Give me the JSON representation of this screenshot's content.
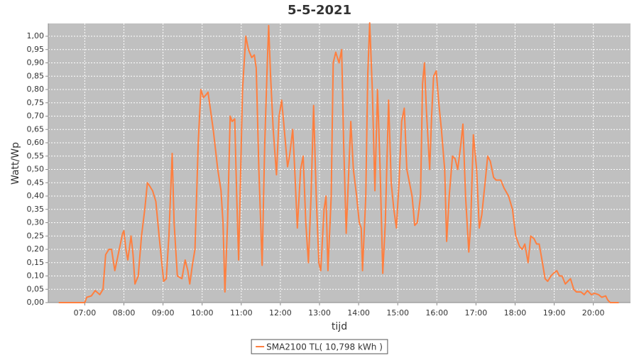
{
  "chart_data": {
    "type": "line",
    "title": "5-5-2021",
    "x_label": "tijd",
    "y_label": "Watt/Wp",
    "plot_background": "#c0c0c0",
    "grid": true,
    "legend": "bottom",
    "xlim": [
      "06:04",
      "20:57"
    ],
    "xticks": [
      "07:00",
      "08:00",
      "09:00",
      "10:00",
      "11:00",
      "12:00",
      "13:00",
      "14:00",
      "15:00",
      "16:00",
      "17:00",
      "18:00",
      "19:00",
      "20:00"
    ],
    "ylim": [
      0,
      1.048
    ],
    "yticks": [
      {
        "value": 0,
        "label": "0,00"
      },
      {
        "value": 0.05,
        "label": "0,05"
      },
      {
        "value": 0.1,
        "label": "0,10"
      },
      {
        "value": 0.15,
        "label": "0,15"
      },
      {
        "value": 0.2,
        "label": "0,20"
      },
      {
        "value": 0.25,
        "label": "0,25"
      },
      {
        "value": 0.3,
        "label": "0,30"
      },
      {
        "value": 0.35,
        "label": "0,35"
      },
      {
        "value": 0.4,
        "label": "0,40"
      },
      {
        "value": 0.45,
        "label": "0,45"
      },
      {
        "value": 0.5,
        "label": "0,50"
      },
      {
        "value": 0.55,
        "label": "0,55"
      },
      {
        "value": 0.6,
        "label": "0,60"
      },
      {
        "value": 0.65,
        "label": "0,65"
      },
      {
        "value": 0.7,
        "label": "0,70"
      },
      {
        "value": 0.75,
        "label": "0,75"
      },
      {
        "value": 0.8,
        "label": "0,80"
      },
      {
        "value": 0.85,
        "label": "0,85"
      },
      {
        "value": 0.9,
        "label": "0,90"
      },
      {
        "value": 0.95,
        "label": "0,95"
      },
      {
        "value": 1,
        "label": "1,00"
      }
    ],
    "series": [
      {
        "name": "SMA2100 TL( 10,798 kWh )",
        "color": "#ff7f3f",
        "x": [
          "06:20",
          "07:00",
          "07:03",
          "07:10",
          "07:16",
          "07:23",
          "07:28",
          "07:32",
          "07:37",
          "07:41",
          "07:46",
          "07:52",
          "07:58",
          "08:00",
          "08:03",
          "08:06",
          "08:11",
          "08:14",
          "08:17",
          "08:22",
          "08:27",
          "08:32",
          "08:36",
          "08:39",
          "08:44",
          "08:49",
          "08:54",
          "09:01",
          "09:05",
          "09:09",
          "09:14",
          "09:17",
          "09:22",
          "09:29",
          "09:34",
          "09:38",
          "09:41",
          "09:45",
          "09:49",
          "09:54",
          "09:58",
          "10:02",
          "10:06",
          "10:09",
          "10:17",
          "10:24",
          "10:29",
          "10:32",
          "10:35",
          "10:39",
          "10:43",
          "10:46",
          "10:50",
          "10:53",
          "10:56",
          "11:02",
          "11:07",
          "11:11",
          "11:16",
          "11:20",
          "11:23",
          "11:27",
          "11:32",
          "11:36",
          "11:40",
          "11:42",
          "11:45",
          "11:49",
          "11:54",
          "11:58",
          "12:02",
          "12:06",
          "12:11",
          "12:14",
          "12:19",
          "12:22",
          "12:26",
          "12:31",
          "12:35",
          "12:39",
          "12:43",
          "12:47",
          "12:51",
          "12:55",
          "12:59",
          "13:02",
          "13:07",
          "13:10",
          "13:13",
          "13:18",
          "13:21",
          "13:25",
          "13:30",
          "13:34",
          "13:37",
          "13:41",
          "13:45",
          "13:48",
          "13:52",
          "13:57",
          "14:01",
          "14:04",
          "14:06",
          "14:11",
          "14:14",
          "14:17",
          "14:21",
          "14:25",
          "14:29",
          "14:33",
          "14:37",
          "14:41",
          "14:46",
          "14:50",
          "14:54",
          "14:58",
          "15:02",
          "15:06",
          "15:10",
          "15:14",
          "15:18",
          "15:22",
          "15:26",
          "15:30",
          "15:35",
          "15:38",
          "15:41",
          "15:44",
          "15:49",
          "15:52",
          "15:55",
          "15:59",
          "16:03",
          "16:07",
          "16:12",
          "16:15",
          "16:19",
          "16:24",
          "16:28",
          "16:32",
          "16:37",
          "16:40",
          "16:44",
          "16:49",
          "16:52",
          "16:56",
          "17:01",
          "17:05",
          "17:09",
          "17:14",
          "17:18",
          "17:22",
          "17:27",
          "17:31",
          "17:38",
          "17:43",
          "17:50",
          "17:56",
          "18:01",
          "18:07",
          "18:11",
          "18:15",
          "18:20",
          "18:24",
          "18:29",
          "18:33",
          "18:37",
          "18:42",
          "18:46",
          "18:50",
          "18:55",
          "18:59",
          "19:04",
          "19:08",
          "19:12",
          "19:17",
          "19:21",
          "19:25",
          "19:30",
          "19:34",
          "19:41",
          "19:46",
          "19:51",
          "19:57",
          "20:02",
          "20:08",
          "20:13",
          "20:19",
          "20:22",
          "20:26",
          "20:39"
        ],
        "values": [
          0,
          0,
          0.02,
          0.025,
          0.045,
          0.03,
          0.05,
          0.18,
          0.2,
          0.2,
          0.12,
          0.19,
          0.26,
          0.27,
          0.2,
          0.16,
          0.25,
          0.18,
          0.07,
          0.1,
          0.25,
          0.35,
          0.45,
          0.44,
          0.42,
          0.38,
          0.25,
          0.08,
          0.09,
          0.25,
          0.56,
          0.3,
          0.1,
          0.09,
          0.16,
          0.12,
          0.07,
          0.14,
          0.2,
          0.6,
          0.8,
          0.77,
          0.78,
          0.79,
          0.65,
          0.5,
          0.42,
          0.3,
          0.04,
          0.3,
          0.7,
          0.68,
          0.69,
          0.4,
          0.16,
          0.8,
          1.0,
          0.95,
          0.92,
          0.93,
          0.88,
          0.5,
          0.14,
          0.6,
          0.9,
          1.04,
          0.85,
          0.65,
          0.48,
          0.7,
          0.76,
          0.65,
          0.51,
          0.55,
          0.65,
          0.5,
          0.28,
          0.5,
          0.55,
          0.3,
          0.15,
          0.4,
          0.74,
          0.4,
          0.15,
          0.12,
          0.35,
          0.4,
          0.12,
          0.4,
          0.9,
          0.94,
          0.9,
          0.95,
          0.6,
          0.26,
          0.5,
          0.68,
          0.5,
          0.4,
          0.3,
          0.28,
          0.12,
          0.4,
          0.85,
          1.05,
          0.8,
          0.42,
          0.8,
          0.5,
          0.11,
          0.3,
          0.76,
          0.45,
          0.35,
          0.28,
          0.45,
          0.68,
          0.73,
          0.5,
          0.45,
          0.4,
          0.29,
          0.3,
          0.4,
          0.82,
          0.9,
          0.72,
          0.5,
          0.7,
          0.85,
          0.87,
          0.75,
          0.65,
          0.5,
          0.23,
          0.4,
          0.55,
          0.54,
          0.5,
          0.6,
          0.67,
          0.4,
          0.19,
          0.3,
          0.63,
          0.5,
          0.28,
          0.33,
          0.45,
          0.55,
          0.53,
          0.47,
          0.46,
          0.46,
          0.43,
          0.4,
          0.35,
          0.25,
          0.21,
          0.2,
          0.22,
          0.15,
          0.25,
          0.24,
          0.22,
          0.22,
          0.15,
          0.09,
          0.08,
          0.1,
          0.11,
          0.12,
          0.1,
          0.1,
          0.07,
          0.08,
          0.09,
          0.05,
          0.04,
          0.04,
          0.03,
          0.045,
          0.03,
          0.035,
          0.03,
          0.02,
          0.025,
          0.01,
          0,
          0
        ]
      }
    ]
  }
}
